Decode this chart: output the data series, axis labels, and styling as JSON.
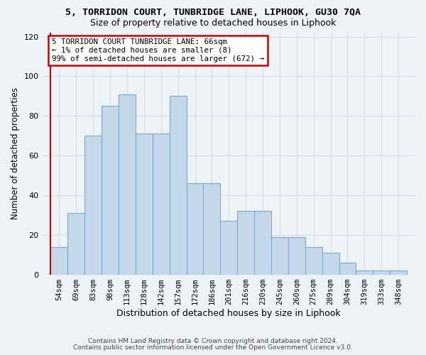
{
  "title": "5, TORRIDON COURT, TUNBRIDGE LANE, LIPHOOK, GU30 7QA",
  "subtitle": "Size of property relative to detached houses in Liphook",
  "xlabel": "Distribution of detached houses by size in Liphook",
  "ylabel": "Number of detached properties",
  "categories": [
    "54sqm",
    "69sqm",
    "83sqm",
    "98sqm",
    "113sqm",
    "128sqm",
    "142sqm",
    "157sqm",
    "172sqm",
    "186sqm",
    "201sqm",
    "216sqm",
    "230sqm",
    "245sqm",
    "260sqm",
    "275sqm",
    "289sqm",
    "304sqm",
    "319sqm",
    "333sqm",
    "348sqm"
  ],
  "bar_values": [
    14,
    31,
    70,
    85,
    91,
    71,
    71,
    90,
    46,
    46,
    27,
    32,
    32,
    19,
    19,
    14,
    11,
    6,
    2,
    2,
    2
  ],
  "bar_color": "#c5d8ea",
  "bar_edge_color": "#7aabcc",
  "vline_color": "#cc0000",
  "annotation_text": "5 TORRIDON COURT TUNBRIDGE LANE: 66sqm\n← 1% of detached houses are smaller (8)\n99% of semi-detached houses are larger (672) →",
  "annotation_box_edge": "#cc0000",
  "grid_color": "#d5dde8",
  "ylim": [
    0,
    122
  ],
  "yticks": [
    0,
    20,
    40,
    60,
    80,
    100,
    120
  ],
  "footer1": "Contains HM Land Registry data © Crown copyright and database right 2024.",
  "footer2": "Contains public sector information licensed under the Open Government Licence v3.0.",
  "bg_color": "#eef3f8"
}
